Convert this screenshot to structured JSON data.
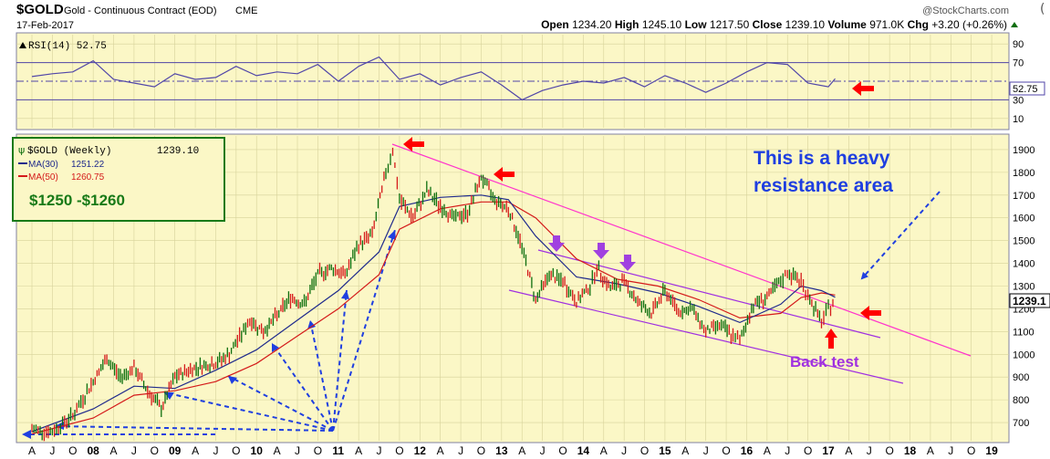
{
  "header": {
    "symbol": "$GOLD",
    "name": "Gold - Continuous Contract (EOD)",
    "exchange": "CME",
    "date": "17-Feb-2017",
    "watermark": "@StockCharts.com",
    "open_label": "Open",
    "open_value": "1234.20",
    "high_label": "High",
    "high_value": "1245.10",
    "low_label": "Low",
    "low_value": "1217.50",
    "close_label": "Close",
    "close_value": "1239.10",
    "volume_label": "Volume",
    "volume_value": "971.0K",
    "chg_label": "Chg",
    "chg_value": "+3.20 (+0.26%)"
  },
  "colors": {
    "panel_bg": "#fbf7c6",
    "grid": "#d6d29a",
    "price": "#0d6e0d",
    "ma30": "#1f2a8c",
    "ma50": "#d41a1a",
    "rsi": "#5146a8",
    "trendline_magenta": "#ff33cc",
    "channel_purple": "#a030e0",
    "fan_blue": "#1f3fe0",
    "annotation_blue": "#1f3fe0",
    "annotation_green": "#187a18",
    "arrow_red": "#ff0000",
    "arrow_purple": "#a040e0"
  },
  "chart_data": [
    {
      "type": "line",
      "panel": "rsi",
      "label": "RSI(14) 52.75",
      "current_value": "52.75",
      "ylim": [
        0,
        100
      ],
      "yticks": [
        "90",
        "70",
        "30",
        "10"
      ],
      "reference_lines": [
        70,
        50,
        30
      ],
      "series": [
        {
          "name": "RSI(14)",
          "x": [
            "2007-04",
            "2007-07",
            "2007-10",
            "2008-01",
            "2008-04",
            "2008-07",
            "2008-10",
            "2009-01",
            "2009-04",
            "2009-07",
            "2009-10",
            "2010-01",
            "2010-04",
            "2010-07",
            "2010-10",
            "2011-01",
            "2011-04",
            "2011-07",
            "2011-10",
            "2012-01",
            "2012-04",
            "2012-07",
            "2012-10",
            "2013-01",
            "2013-04",
            "2013-07",
            "2013-10",
            "2014-01",
            "2014-04",
            "2014-07",
            "2014-10",
            "2015-01",
            "2015-04",
            "2015-07",
            "2015-10",
            "2016-01",
            "2016-04",
            "2016-07",
            "2016-10",
            "2017-01",
            "2017-02"
          ],
          "values": [
            55,
            58,
            60,
            72,
            52,
            48,
            44,
            58,
            52,
            54,
            66,
            56,
            60,
            58,
            68,
            50,
            66,
            76,
            52,
            58,
            46,
            54,
            60,
            46,
            30,
            40,
            46,
            50,
            48,
            54,
            44,
            56,
            48,
            38,
            48,
            60,
            70,
            68,
            48,
            44,
            52.75
          ]
        }
      ]
    },
    {
      "type": "line",
      "panel": "price",
      "legend": [
        {
          "name": "$GOLD (Weekly)",
          "value": "1239.10"
        },
        {
          "name": "MA(30)",
          "value": "1251.22"
        },
        {
          "name": "MA(50)",
          "value": "1260.75"
        }
      ],
      "ylim": [
        620,
        1960
      ],
      "yticks": [
        "1900",
        "1800",
        "1700",
        "1600",
        "1500",
        "1400",
        "1300",
        "1200",
        "1100",
        "1000",
        "900",
        "800",
        "700"
      ],
      "last_price_label": "1239.1",
      "x_tick_labels": [
        "A",
        "J",
        "O",
        "08",
        "A",
        "J",
        "O",
        "09",
        "A",
        "J",
        "O",
        "10",
        "A",
        "J",
        "O",
        "11",
        "A",
        "J",
        "O",
        "12",
        "A",
        "J",
        "O",
        "13",
        "A",
        "J",
        "O",
        "14",
        "A",
        "J",
        "O",
        "15",
        "A",
        "J",
        "O",
        "16",
        "A",
        "J",
        "O",
        "17",
        "A",
        "J",
        "O",
        "18",
        "A",
        "J",
        "O",
        "19"
      ],
      "series": [
        {
          "name": "$GOLD (Weekly)",
          "x": [
            "2007-04",
            "2007-07",
            "2007-10",
            "2008-01",
            "2008-03",
            "2008-05",
            "2008-07",
            "2008-09",
            "2008-11",
            "2009-01",
            "2009-03",
            "2009-05",
            "2009-07",
            "2009-09",
            "2009-12",
            "2010-02",
            "2010-04",
            "2010-06",
            "2010-08",
            "2010-10",
            "2010-12",
            "2011-02",
            "2011-04",
            "2011-06",
            "2011-08",
            "2011-09",
            "2011-10",
            "2011-12",
            "2012-02",
            "2012-04",
            "2012-06",
            "2012-08",
            "2012-10",
            "2012-12",
            "2013-02",
            "2013-04",
            "2013-06",
            "2013-08",
            "2013-10",
            "2013-12",
            "2014-02",
            "2014-03",
            "2014-05",
            "2014-07",
            "2014-09",
            "2014-11",
            "2015-01",
            "2015-03",
            "2015-05",
            "2015-07",
            "2015-09",
            "2015-11",
            "2015-12",
            "2016-02",
            "2016-04",
            "2016-06",
            "2016-07",
            "2016-09",
            "2016-10",
            "2016-12",
            "2017-01",
            "2017-02"
          ],
          "values": [
            670,
            660,
            730,
            880,
            980,
            900,
            940,
            840,
            760,
            900,
            930,
            950,
            960,
            1000,
            1150,
            1100,
            1170,
            1250,
            1220,
            1350,
            1380,
            1350,
            1480,
            1530,
            1800,
            1900,
            1680,
            1600,
            1720,
            1650,
            1600,
            1620,
            1780,
            1680,
            1640,
            1470,
            1240,
            1350,
            1320,
            1230,
            1300,
            1380,
            1290,
            1320,
            1230,
            1180,
            1280,
            1190,
            1200,
            1100,
            1130,
            1080,
            1060,
            1220,
            1250,
            1320,
            1360,
            1320,
            1260,
            1140,
            1200,
            1239.1
          ]
        },
        {
          "name": "MA(30)",
          "x": [
            "2007-04",
            "2008-01",
            "2008-07",
            "2009-01",
            "2009-07",
            "2010-01",
            "2010-07",
            "2011-01",
            "2011-07",
            "2011-10",
            "2012-04",
            "2012-10",
            "2013-02",
            "2013-06",
            "2013-12",
            "2014-06",
            "2014-12",
            "2015-06",
            "2015-12",
            "2016-06",
            "2016-09",
            "2016-12",
            "2017-02"
          ],
          "values": [
            660,
            760,
            860,
            850,
            930,
            1020,
            1150,
            1280,
            1450,
            1650,
            1690,
            1700,
            1680,
            1520,
            1340,
            1310,
            1270,
            1210,
            1140,
            1220,
            1300,
            1280,
            1251.22
          ]
        },
        {
          "name": "MA(50)",
          "x": [
            "2007-04",
            "2008-01",
            "2008-07",
            "2009-01",
            "2009-07",
            "2010-01",
            "2010-07",
            "2011-01",
            "2011-07",
            "2011-10",
            "2012-04",
            "2012-10",
            "2013-02",
            "2013-06",
            "2013-12",
            "2014-06",
            "2014-12",
            "2015-06",
            "2015-12",
            "2016-06",
            "2016-09",
            "2016-12",
            "2017-02"
          ],
          "values": [
            650,
            720,
            820,
            840,
            880,
            960,
            1080,
            1200,
            1350,
            1550,
            1640,
            1670,
            1670,
            1600,
            1420,
            1330,
            1300,
            1240,
            1160,
            1180,
            1250,
            1270,
            1260.75
          ]
        }
      ],
      "annotations": [
        {
          "text": "This is a heavy",
          "color": "blue"
        },
        {
          "text": "resistance area",
          "color": "blue"
        },
        {
          "text": "$1250 -$1260",
          "color": "green"
        },
        {
          "text": "Back test",
          "color": "purple"
        }
      ]
    }
  ]
}
